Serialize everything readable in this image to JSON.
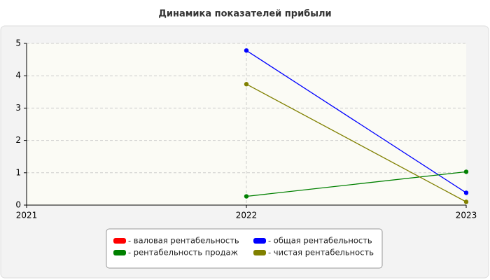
{
  "chart_data": {
    "type": "line",
    "title": "Динамика показателей прибыли",
    "categories": [
      "2021",
      "2022",
      "2023"
    ],
    "series": [
      {
        "name": "- валовая рентабельность",
        "color": "#ff0000",
        "values": [
          null,
          null,
          null
        ]
      },
      {
        "name": "- общая рентабельность",
        "color": "#0000ff",
        "values": [
          null,
          4.78,
          0.38
        ]
      },
      {
        "name": "- рентабельность продаж",
        "color": "#008000",
        "values": [
          null,
          0.27,
          1.03
        ]
      },
      {
        "name": "- чистая рентабельность",
        "color": "#808000",
        "values": [
          null,
          3.74,
          0.1
        ]
      }
    ],
    "ylim": [
      0,
      5
    ],
    "yticks": [
      0,
      1,
      2,
      3,
      4,
      5
    ],
    "grid": true
  }
}
